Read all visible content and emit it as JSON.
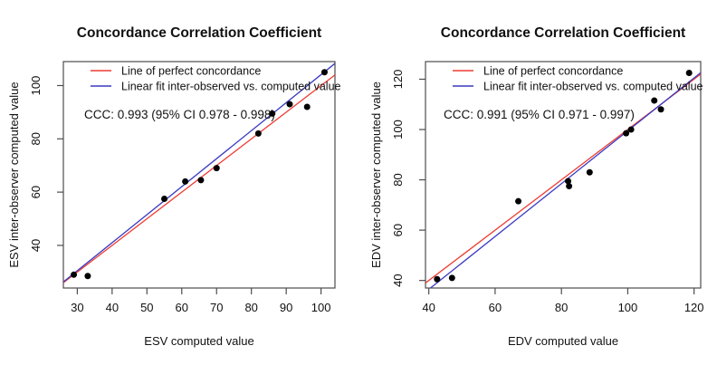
{
  "figure": {
    "background": "#ffffff",
    "description": "Two R-style scatter plots comparing computed vs inter-observer computed ventricular volume values"
  },
  "colors": {
    "identity_line": "#ee3c34",
    "fit_line": "#3a3ac2",
    "points": "#000000",
    "frame": "#4d4d4d",
    "text": "#111111"
  },
  "chart_data": [
    {
      "type": "scatter",
      "title": "Concordance Correlation Coefficient",
      "xlabel": "ESV computed value",
      "ylabel": "ESV inter-observer computed value",
      "xlim": [
        26,
        104
      ],
      "ylim": [
        24,
        109
      ],
      "xticks": [
        30,
        40,
        50,
        60,
        70,
        80,
        90,
        100
      ],
      "yticks": [
        40,
        60,
        80,
        100
      ],
      "grid": false,
      "legend_position": "topleft",
      "annotation": "CCC: 0.993 (95% CI 0.978 - 0.998)",
      "lines": [
        {
          "name": "identity-line",
          "label": "Line of perfect concordance",
          "color_key": "identity_line",
          "endpoints": [
            [
              26,
              26
            ],
            [
              104,
              104
            ]
          ]
        },
        {
          "name": "fit-line",
          "label": "Linear fit inter-observed vs. computed value",
          "color_key": "fit_line",
          "endpoints": [
            [
              26,
              26.3
            ],
            [
              104,
              108.3
            ]
          ]
        }
      ],
      "points": [
        [
          29,
          29
        ],
        [
          33,
          28.5
        ],
        [
          55,
          57.5
        ],
        [
          61,
          64
        ],
        [
          65.5,
          64.5
        ],
        [
          70,
          69
        ],
        [
          82,
          82
        ],
        [
          86,
          89.5
        ],
        [
          91,
          93
        ],
        [
          96,
          92
        ],
        [
          101,
          105
        ]
      ]
    },
    {
      "type": "scatter",
      "title": "Concordance Correlation Coefficient",
      "xlabel": "EDV computed value",
      "ylabel": "EDV inter-observer computed value",
      "xlim": [
        39,
        122
      ],
      "ylim": [
        37,
        127
      ],
      "xticks": [
        40,
        60,
        80,
        100,
        120
      ],
      "yticks": [
        40,
        60,
        80,
        100,
        120
      ],
      "grid": false,
      "legend_position": "topleft",
      "annotation": "CCC: 0.991 (95% CI 0.971 - 0.997)",
      "lines": [
        {
          "name": "identity-line",
          "label": "Line of perfect concordance",
          "color_key": "identity_line",
          "endpoints": [
            [
              39,
              39
            ],
            [
              122,
              122
            ]
          ]
        },
        {
          "name": "fit-line",
          "label": "Linear fit inter-observed vs. computed value",
          "color_key": "fit_line",
          "endpoints": [
            [
              40.5,
              37
            ],
            [
              122,
              122.6
            ]
          ]
        }
      ],
      "points": [
        [
          42.5,
          40.5
        ],
        [
          47,
          41
        ],
        [
          67,
          71.5
        ],
        [
          82,
          79.5
        ],
        [
          82.3,
          77.5
        ],
        [
          88.5,
          83
        ],
        [
          99.5,
          98.5
        ],
        [
          101,
          100
        ],
        [
          108,
          111.5
        ],
        [
          110,
          108
        ],
        [
          118.5,
          122.5
        ]
      ]
    }
  ]
}
